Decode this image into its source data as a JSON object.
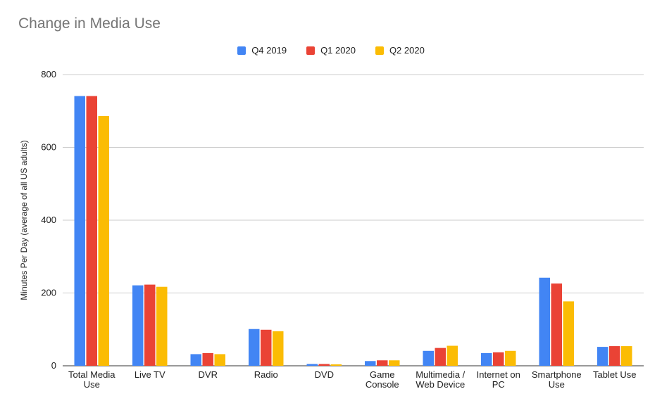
{
  "chart_data": {
    "type": "bar",
    "title": "Change in Media Use",
    "xlabel": "",
    "ylabel": "Minutes Per Day (average of all US adults)",
    "ylim": [
      0,
      800
    ],
    "yticks": [
      0,
      200,
      400,
      600,
      800
    ],
    "grid": true,
    "legend_position": "top-center",
    "categories": [
      [
        "Total Media",
        "Use"
      ],
      [
        "Live TV"
      ],
      [
        "DVR"
      ],
      [
        "Radio"
      ],
      [
        "DVD"
      ],
      [
        "Game",
        "Console"
      ],
      [
        "Multimedia /",
        "Web Device"
      ],
      [
        "Internet on",
        "PC"
      ],
      [
        "Smartphone",
        "Use"
      ],
      [
        "Tablet Use"
      ]
    ],
    "series": [
      {
        "name": "Q4 2019",
        "color": "#4285f4",
        "values": [
          741,
          221,
          32,
          101,
          5,
          13,
          41,
          35,
          242,
          52
        ]
      },
      {
        "name": "Q1 2020",
        "color": "#ea4335",
        "values": [
          741,
          223,
          35,
          99,
          5,
          15,
          49,
          37,
          226,
          54
        ]
      },
      {
        "name": "Q2 2020",
        "color": "#fbbc04",
        "values": [
          686,
          217,
          32,
          95,
          4,
          15,
          55,
          41,
          177,
          54
        ]
      }
    ]
  }
}
